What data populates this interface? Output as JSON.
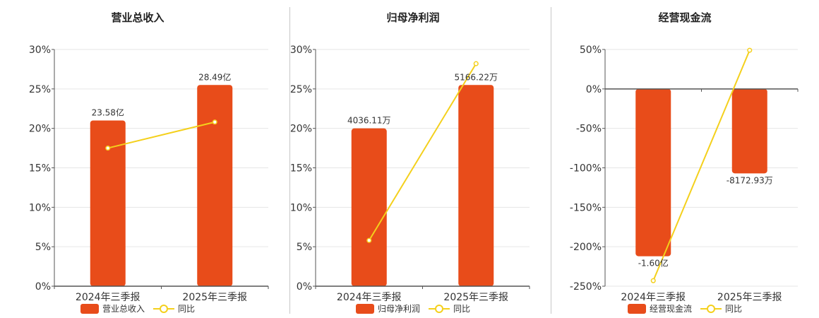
{
  "colors": {
    "bar": "#e84c1a",
    "line": "#f4d01c",
    "grid": "#e6e6e6",
    "axis": "#555555"
  },
  "chart_data": [
    {
      "type": "bar",
      "title": "营业总收入",
      "categories": [
        "2024年三季报",
        "2025年三季报"
      ],
      "ylim": [
        0,
        30
      ],
      "yticks": [
        0,
        5,
        10,
        15,
        20,
        25,
        30
      ],
      "series": [
        {
          "name": "营业总收入",
          "type": "bar",
          "values": [
            21,
            25.5
          ],
          "labels": [
            "23.58亿",
            "28.49亿"
          ]
        },
        {
          "name": "同比",
          "type": "line",
          "values": [
            17.5,
            20.8
          ]
        }
      ],
      "grid": true,
      "legend": "bottom"
    },
    {
      "type": "bar",
      "title": "归母净利润",
      "categories": [
        "2024年三季报",
        "2025年三季报"
      ],
      "ylim": [
        0,
        30
      ],
      "yticks": [
        0,
        5,
        10,
        15,
        20,
        25,
        30
      ],
      "series": [
        {
          "name": "归母净利润",
          "type": "bar",
          "values": [
            20,
            25.5
          ],
          "labels": [
            "4036.11万",
            "5166.22万"
          ]
        },
        {
          "name": "同比",
          "type": "line",
          "values": [
            5.8,
            28.2
          ]
        }
      ],
      "grid": true,
      "legend": "bottom"
    },
    {
      "type": "bar",
      "title": "经营现金流",
      "categories": [
        "2024年三季报",
        "2025年三季报"
      ],
      "ylim": [
        -250,
        50
      ],
      "yticks": [
        -250,
        -200,
        -150,
        -100,
        -50,
        0,
        50
      ],
      "series": [
        {
          "name": "经营现金流",
          "type": "bar",
          "values": [
            -212,
            -107
          ],
          "labels": [
            "-1.60亿",
            "-8172.93万"
          ]
        },
        {
          "name": "同比",
          "type": "line",
          "values": [
            -243,
            49
          ]
        }
      ],
      "grid": true,
      "legend": "bottom"
    }
  ]
}
